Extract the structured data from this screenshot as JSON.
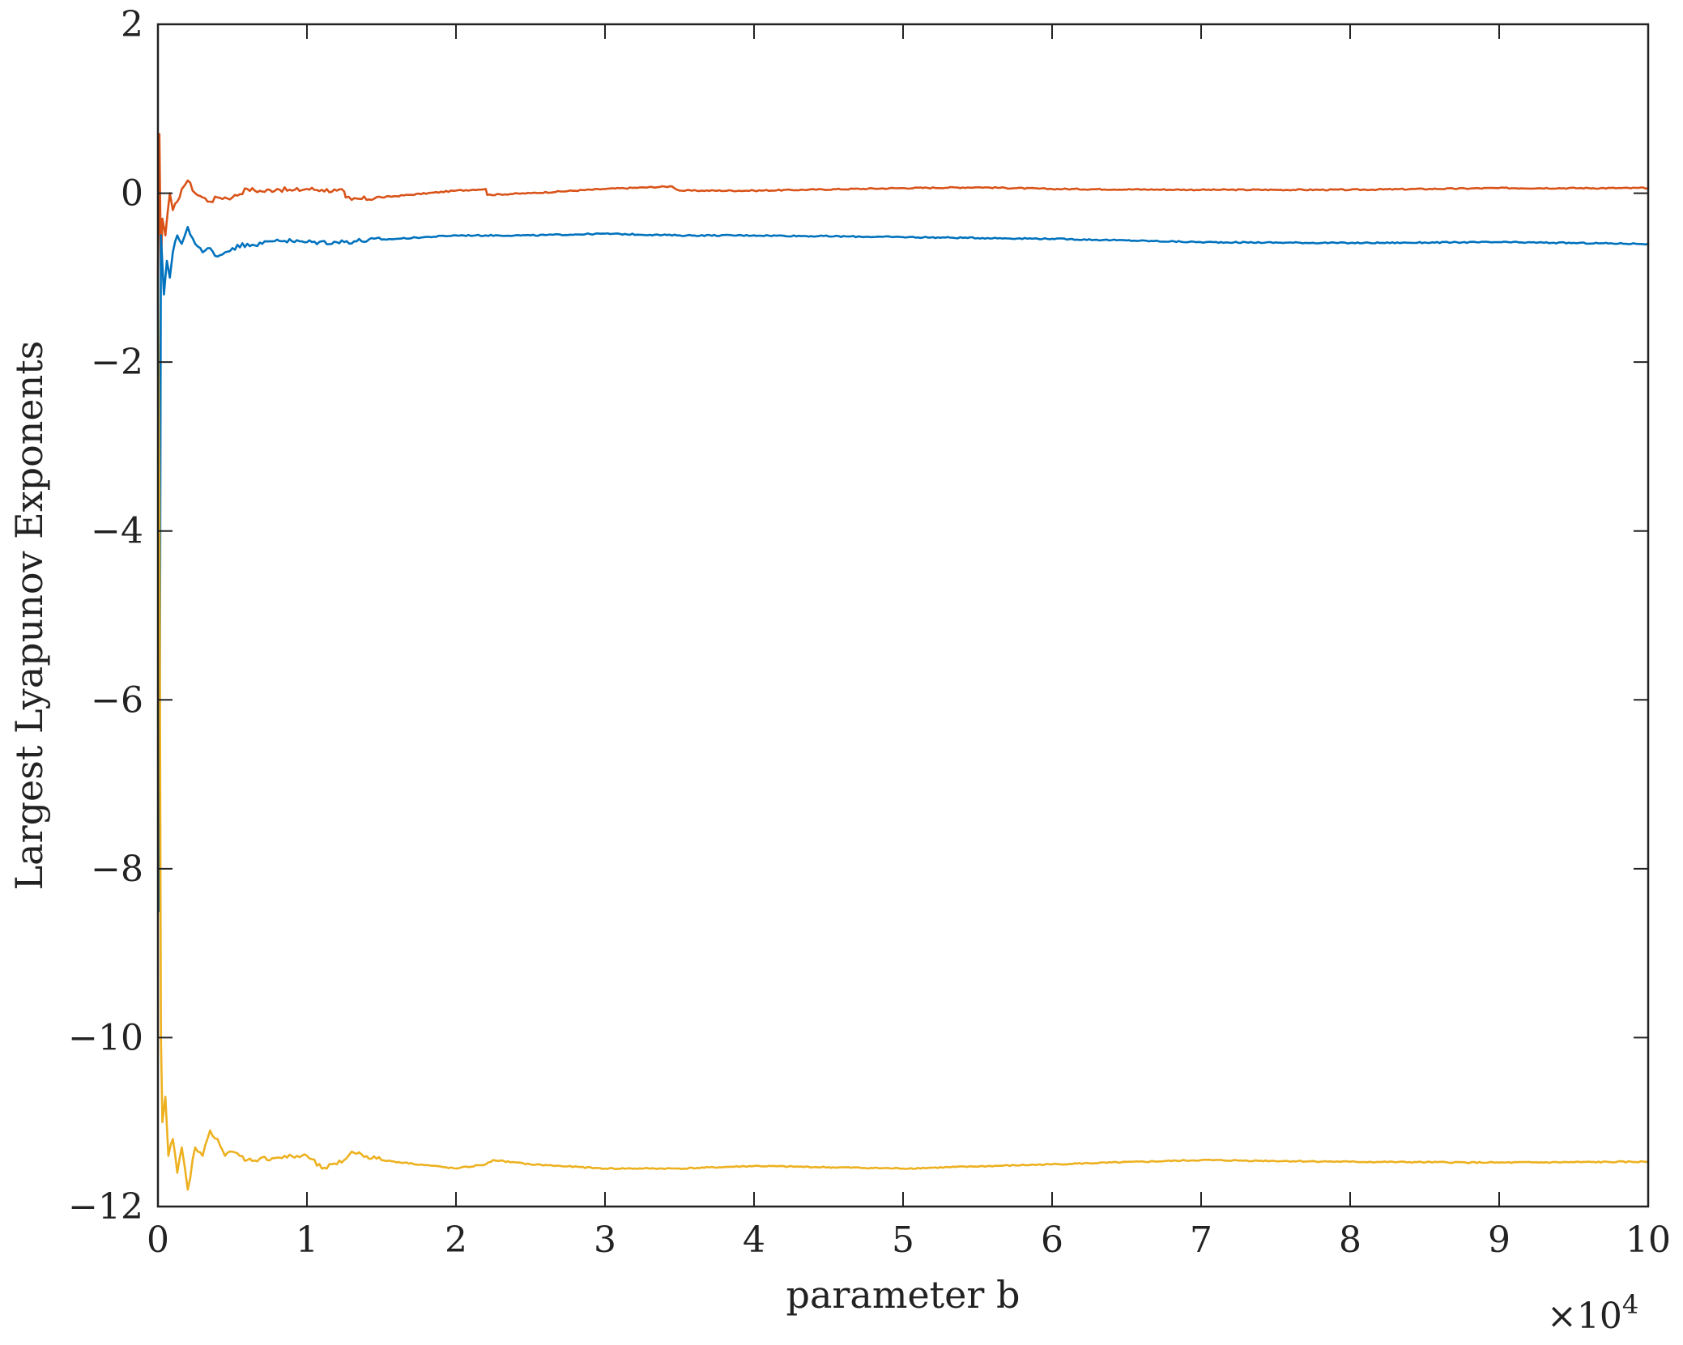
{
  "chart_data": {
    "type": "line",
    "title": "",
    "xlabel": "parameter b",
    "ylabel": "Largest Lyapunov Exponents",
    "x_multiplier_base": "×10",
    "x_multiplier_exp": "4",
    "xlim": [
      0,
      10
    ],
    "ylim": [
      -12,
      2
    ],
    "xticks": [
      0,
      1,
      2,
      3,
      4,
      5,
      6,
      7,
      8,
      9,
      10
    ],
    "xtick_labels": [
      "0",
      "1",
      "2",
      "3",
      "4",
      "5",
      "6",
      "7",
      "8",
      "9",
      "10"
    ],
    "yticks": [
      2,
      0,
      -2,
      -4,
      -6,
      -8,
      -10,
      -12
    ],
    "ytick_labels": [
      "2",
      "0",
      "−2",
      "−4",
      "−6",
      "−8",
      "−10",
      "−12"
    ],
    "grid": false,
    "series": [
      {
        "color": "#D95319",
        "x": [
          0,
          0.01,
          0.02,
          0.03,
          0.05,
          0.08,
          0.1,
          0.13,
          0.16,
          0.2,
          0.25,
          0.3,
          0.35,
          0.4,
          0.5,
          0.6,
          0.7,
          0.8,
          0.9,
          1.0,
          1.1,
          1.2,
          1.25,
          1.26,
          1.3,
          1.5,
          2.0,
          2.2,
          2.21,
          2.5,
          3.0,
          3.45,
          3.5,
          4.0,
          5.0,
          5.5,
          6.0,
          7.0,
          8.0,
          9.0,
          10.0
        ],
        "y": [
          -1.0,
          0.7,
          -0.9,
          -0.3,
          -0.5,
          0.0,
          -0.2,
          -0.1,
          0.05,
          0.15,
          0.0,
          -0.05,
          -0.1,
          -0.05,
          -0.05,
          0.05,
          0.02,
          0.05,
          0.03,
          0.05,
          0.04,
          0.03,
          0.02,
          -0.05,
          -0.08,
          -0.05,
          0.03,
          0.05,
          -0.02,
          0.0,
          0.05,
          0.08,
          0.03,
          0.03,
          0.06,
          0.07,
          0.05,
          0.04,
          0.04,
          0.06,
          0.06
        ]
      },
      {
        "color": "#0072BD",
        "x": [
          0,
          0.01,
          0.02,
          0.04,
          0.06,
          0.08,
          0.1,
          0.13,
          0.16,
          0.2,
          0.25,
          0.3,
          0.35,
          0.4,
          0.45,
          0.5,
          0.6,
          0.7,
          0.8,
          0.9,
          1.0,
          1.2,
          1.5,
          2.0,
          2.5,
          3.0,
          3.5,
          4.0,
          5.0,
          6.0,
          7.0,
          8.0,
          9.0,
          10.0
        ],
        "y": [
          -1.0,
          -8.5,
          -0.5,
          -1.2,
          -0.8,
          -1.0,
          -0.7,
          -0.5,
          -0.6,
          -0.4,
          -0.6,
          -0.7,
          -0.65,
          -0.75,
          -0.7,
          -0.65,
          -0.6,
          -0.6,
          -0.55,
          -0.57,
          -0.58,
          -0.58,
          -0.55,
          -0.5,
          -0.5,
          -0.48,
          -0.5,
          -0.5,
          -0.52,
          -0.54,
          -0.58,
          -0.59,
          -0.58,
          -0.6
        ]
      },
      {
        "color": "#EDB120",
        "x": [
          0,
          0.01,
          0.02,
          0.03,
          0.05,
          0.07,
          0.1,
          0.13,
          0.16,
          0.2,
          0.25,
          0.3,
          0.35,
          0.4,
          0.45,
          0.5,
          0.6,
          0.8,
          1.0,
          1.1,
          1.2,
          1.25,
          1.3,
          1.5,
          2.0,
          2.2,
          2.25,
          2.5,
          3.0,
          3.5,
          4.0,
          5.0,
          6.0,
          7.0,
          8.0,
          9.0,
          10.0
        ],
        "y": [
          -1.0,
          -3.5,
          -10.0,
          -11.0,
          -10.7,
          -11.4,
          -11.2,
          -11.6,
          -11.3,
          -11.8,
          -11.3,
          -11.4,
          -11.1,
          -11.2,
          -11.4,
          -11.35,
          -11.45,
          -11.42,
          -11.4,
          -11.55,
          -11.5,
          -11.45,
          -11.35,
          -11.45,
          -11.55,
          -11.5,
          -11.45,
          -11.5,
          -11.55,
          -11.55,
          -11.52,
          -11.55,
          -11.5,
          -11.45,
          -11.47,
          -11.48,
          -11.47
        ]
      }
    ]
  }
}
